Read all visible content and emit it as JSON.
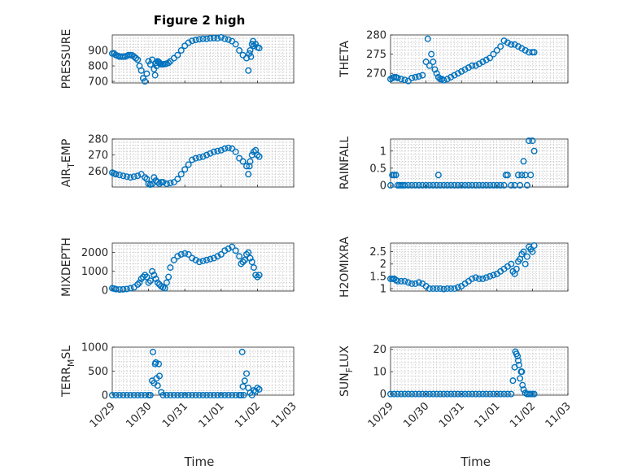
{
  "figure": {
    "title": "Figure 2 high",
    "marker_color": "#0072BD"
  },
  "chart_data": [
    {
      "type": "scatter",
      "ylabel": "PRESSURE",
      "ylabel_sub": "",
      "ylabel_after": "",
      "xlabel": "",
      "ylim": [
        690,
        1000
      ],
      "yticks": [
        700,
        800,
        900
      ],
      "yticklabels": [
        "700",
        "800",
        "900"
      ],
      "xlim": [
        0,
        5
      ],
      "xticks": [
        0,
        1,
        2,
        3,
        4,
        5
      ],
      "xticklabels": [],
      "xgrid_minor": 10,
      "x": [
        0,
        0.05,
        0.1,
        0.15,
        0.2,
        0.25,
        0.3,
        0.35,
        0.4,
        0.45,
        0.5,
        0.55,
        0.6,
        0.65,
        0.7,
        0.75,
        0.8,
        0.85,
        0.9,
        0.95,
        1.0,
        1.05,
        1.1,
        1.15,
        1.18,
        1.2,
        1.22,
        1.25,
        1.28,
        1.3,
        1.32,
        1.35,
        1.4,
        1.45,
        1.5,
        1.55,
        1.6,
        1.7,
        1.8,
        1.9,
        2.0,
        2.1,
        2.2,
        2.3,
        2.4,
        2.5,
        2.6,
        2.7,
        2.8,
        2.9,
        3.0,
        3.1,
        3.2,
        3.3,
        3.4,
        3.5,
        3.6,
        3.7,
        3.75,
        3.78,
        3.8,
        3.82,
        3.85,
        3.88,
        3.9,
        3.95,
        4.0,
        4.05
      ],
      "y": [
        880,
        880,
        870,
        865,
        860,
        860,
        860,
        860,
        865,
        870,
        870,
        868,
        860,
        850,
        840,
        800,
        770,
        720,
        700,
        750,
        830,
        810,
        840,
        780,
        740,
        820,
        800,
        830,
        825,
        820,
        812,
        810,
        810,
        812,
        815,
        820,
        830,
        850,
        870,
        900,
        930,
        950,
        962,
        968,
        972,
        975,
        975,
        978,
        980,
        978,
        985,
        975,
        970,
        960,
        940,
        900,
        870,
        850,
        770,
        880,
        900,
        860,
        940,
        960,
        930,
        940,
        920,
        915
      ]
    },
    {
      "type": "scatter",
      "ylabel": "THETA",
      "ylabel_sub": "",
      "ylabel_after": "",
      "xlabel": "",
      "ylim": [
        267.5,
        280
      ],
      "yticks": [
        270,
        275,
        280
      ],
      "yticklabels": [
        "270",
        "275",
        "280"
      ],
      "xlim": [
        0,
        5
      ],
      "xticks": [
        0,
        1,
        2,
        3,
        4,
        5
      ],
      "xticklabels": [],
      "xgrid_minor": 10,
      "x": [
        0,
        0.05,
        0.1,
        0.15,
        0.2,
        0.3,
        0.4,
        0.5,
        0.6,
        0.7,
        0.8,
        0.9,
        1.0,
        1.05,
        1.1,
        1.15,
        1.2,
        1.25,
        1.3,
        1.35,
        1.4,
        1.45,
        1.5,
        1.6,
        1.7,
        1.8,
        1.9,
        2.0,
        2.1,
        2.2,
        2.3,
        2.4,
        2.5,
        2.6,
        2.7,
        2.8,
        2.9,
        3.0,
        3.1,
        3.2,
        3.3,
        3.4,
        3.5,
        3.6,
        3.7,
        3.8,
        3.9,
        4.0,
        4.05
      ],
      "y": [
        268.5,
        268.8,
        269,
        269,
        268.8,
        268.5,
        268.3,
        268,
        268.8,
        269,
        269.2,
        269.5,
        273,
        279,
        272,
        275,
        273,
        271,
        270,
        269,
        268.5,
        268.5,
        268.2,
        268.5,
        269,
        269.5,
        270,
        270.5,
        271,
        271.5,
        272,
        272,
        272.5,
        273,
        273.5,
        274,
        275,
        276,
        277,
        278.5,
        278,
        277.5,
        277.5,
        277,
        276.5,
        276,
        275.5,
        275.5,
        275.5
      ]
    },
    {
      "type": "scatter",
      "ylabel": "AIR",
      "ylabel_sub": "T",
      "ylabel_after": "EMP",
      "xlabel": "",
      "ylim": [
        250,
        280
      ],
      "yticks": [
        260,
        270,
        280
      ],
      "yticklabels": [
        "260",
        "270",
        "280"
      ],
      "xlim": [
        0,
        5
      ],
      "xticks": [
        0,
        1,
        2,
        3,
        4,
        5
      ],
      "xticklabels": [],
      "xgrid_minor": 10,
      "x": [
        0,
        0.05,
        0.1,
        0.2,
        0.3,
        0.4,
        0.5,
        0.6,
        0.7,
        0.8,
        0.9,
        0.95,
        1.0,
        1.05,
        1.1,
        1.15,
        1.2,
        1.25,
        1.3,
        1.35,
        1.4,
        1.5,
        1.6,
        1.7,
        1.8,
        1.9,
        2.0,
        2.1,
        2.2,
        2.3,
        2.4,
        2.5,
        2.6,
        2.7,
        2.8,
        2.9,
        3.0,
        3.1,
        3.2,
        3.3,
        3.4,
        3.5,
        3.6,
        3.7,
        3.75,
        3.78,
        3.8,
        3.85,
        3.9,
        3.95,
        4.0,
        4.05
      ],
      "y": [
        259,
        258.5,
        258,
        257.5,
        257,
        256.5,
        256,
        256.5,
        257,
        258,
        256,
        255,
        252,
        251.5,
        252,
        256,
        254,
        253,
        252,
        253,
        253,
        252,
        252.5,
        253,
        255,
        258,
        261,
        264,
        267,
        268,
        268.5,
        269,
        270,
        271,
        272,
        272.5,
        273,
        274,
        274.5,
        274,
        272,
        268,
        266,
        263,
        258,
        263,
        266,
        270,
        272,
        273,
        270,
        269
      ]
    },
    {
      "type": "scatter",
      "ylabel": "RAINFALL",
      "ylabel_sub": "",
      "ylabel_after": "",
      "xlabel": "",
      "ylim": [
        -0.05,
        1.35
      ],
      "yticks": [
        0,
        0.5,
        1
      ],
      "yticklabels": [
        "0",
        "0.5",
        "1"
      ],
      "xlim": [
        0,
        5
      ],
      "xticks": [
        0,
        1,
        2,
        3,
        4,
        5
      ],
      "xticklabels": [],
      "xgrid_minor": 10,
      "x": [
        0,
        0.05,
        0.1,
        0.15,
        0.2,
        0.25,
        0.3,
        0.35,
        0.4,
        0.5,
        0.6,
        0.7,
        0.8,
        0.9,
        1.0,
        1.1,
        1.2,
        1.3,
        1.35,
        1.4,
        1.5,
        1.6,
        1.7,
        1.8,
        1.9,
        2.0,
        2.1,
        2.2,
        2.3,
        2.4,
        2.5,
        2.6,
        2.7,
        2.8,
        2.9,
        3.0,
        3.1,
        3.2,
        3.25,
        3.3,
        3.4,
        3.5,
        3.6,
        3.65,
        3.7,
        3.75,
        3.8,
        3.85,
        3.9,
        3.95,
        4.0,
        4.05
      ],
      "y": [
        0,
        0.3,
        0.3,
        0.3,
        0,
        0,
        0,
        0,
        0,
        0,
        0,
        0,
        0,
        0,
        0,
        0,
        0,
        0,
        0.3,
        0,
        0,
        0,
        0,
        0,
        0,
        0,
        0,
        0,
        0,
        0,
        0,
        0,
        0,
        0,
        0,
        0,
        0,
        0,
        0.3,
        0.3,
        0,
        0,
        0.3,
        0,
        0.3,
        0.7,
        0.3,
        0,
        1.3,
        0.3,
        1.3,
        1.0
      ]
    },
    {
      "type": "scatter",
      "ylabel": "MIXDEPTH",
      "ylabel_sub": "",
      "ylabel_after": "",
      "xlabel": "",
      "ylim": [
        -50,
        2500
      ],
      "yticks": [
        0,
        1000,
        2000
      ],
      "yticklabels": [
        "0",
        "1000",
        "2000"
      ],
      "xlim": [
        0,
        5
      ],
      "xticks": [
        0,
        1,
        2,
        3,
        4,
        5
      ],
      "xticklabels": [],
      "xgrid_minor": 10,
      "x": [
        0,
        0.05,
        0.1,
        0.2,
        0.3,
        0.4,
        0.5,
        0.6,
        0.7,
        0.75,
        0.8,
        0.85,
        0.9,
        0.95,
        1.0,
        1.05,
        1.1,
        1.15,
        1.2,
        1.25,
        1.3,
        1.35,
        1.4,
        1.45,
        1.5,
        1.55,
        1.6,
        1.7,
        1.8,
        1.9,
        2.0,
        2.1,
        2.2,
        2.3,
        2.4,
        2.5,
        2.6,
        2.7,
        2.8,
        2.9,
        3.0,
        3.1,
        3.2,
        3.3,
        3.4,
        3.5,
        3.55,
        3.6,
        3.65,
        3.7,
        3.75,
        3.8,
        3.85,
        3.9,
        3.95,
        4.0,
        4.05
      ],
      "y": [
        100,
        80,
        50,
        30,
        40,
        60,
        100,
        150,
        300,
        400,
        600,
        700,
        800,
        700,
        400,
        500,
        1000,
        800,
        600,
        400,
        300,
        200,
        150,
        100,
        400,
        700,
        1200,
        1600,
        1800,
        1900,
        1950,
        1900,
        1700,
        1600,
        1500,
        1550,
        1600,
        1650,
        1700,
        1800,
        1900,
        2100,
        2200,
        2300,
        2100,
        1800,
        1400,
        1500,
        1600,
        1900,
        2000,
        1700,
        1500,
        1200,
        800,
        700,
        800
      ]
    },
    {
      "type": "scatter",
      "ylabel": "H2OMIXRA",
      "ylabel_sub": "",
      "ylabel_after": "",
      "xlabel": "",
      "ylim": [
        0.9,
        2.85
      ],
      "yticks": [
        1,
        1.5,
        2,
        2.5
      ],
      "yticklabels": [
        "1",
        "1.5",
        "2",
        "2.5"
      ],
      "xlim": [
        0,
        5
      ],
      "xticks": [
        0,
        1,
        2,
        3,
        4,
        5
      ],
      "xticklabels": [],
      "xgrid_minor": 10,
      "x": [
        0,
        0.05,
        0.1,
        0.15,
        0.2,
        0.3,
        0.4,
        0.5,
        0.6,
        0.7,
        0.8,
        0.9,
        1.0,
        1.1,
        1.2,
        1.3,
        1.4,
        1.5,
        1.6,
        1.7,
        1.8,
        1.9,
        2.0,
        2.1,
        2.2,
        2.3,
        2.4,
        2.5,
        2.6,
        2.7,
        2.8,
        2.9,
        3.0,
        3.1,
        3.2,
        3.3,
        3.4,
        3.45,
        3.5,
        3.55,
        3.6,
        3.65,
        3.7,
        3.75,
        3.8,
        3.85,
        3.9,
        3.95,
        4.0,
        4.05
      ],
      "y": [
        1.4,
        1.4,
        1.4,
        1.35,
        1.3,
        1.3,
        1.3,
        1.25,
        1.2,
        1.2,
        1.25,
        1.2,
        1.1,
        1.0,
        1.0,
        1.0,
        1.0,
        0.98,
        1.0,
        1.0,
        1.0,
        1.05,
        1.1,
        1.2,
        1.3,
        1.4,
        1.45,
        1.4,
        1.4,
        1.45,
        1.5,
        1.55,
        1.6,
        1.7,
        1.8,
        1.9,
        2.0,
        1.7,
        1.6,
        1.8,
        2.1,
        2.2,
        2.4,
        2.5,
        2.0,
        2.3,
        2.7,
        2.6,
        2.5,
        2.75
      ]
    },
    {
      "type": "scatter",
      "ylabel": "TERR",
      "ylabel_sub": "M",
      "ylabel_after": "SL",
      "xlabel": "Time",
      "ylim": [
        0,
        1000
      ],
      "yticks": [
        0,
        500,
        1000
      ],
      "yticklabels": [
        "0",
        "500",
        "1000"
      ],
      "xlim": [
        0,
        5
      ],
      "xticks": [
        0,
        1,
        2,
        3,
        4,
        5
      ],
      "xticklabels": [
        "10/29",
        "10/30",
        "10/31",
        "11/01",
        "11/02",
        "11/03"
      ],
      "xgrid_minor": 10,
      "x": [
        0,
        0.1,
        0.2,
        0.3,
        0.4,
        0.5,
        0.6,
        0.7,
        0.8,
        0.9,
        1.0,
        1.05,
        1.1,
        1.12,
        1.15,
        1.18,
        1.2,
        1.22,
        1.25,
        1.28,
        1.3,
        1.35,
        1.4,
        1.5,
        1.6,
        1.7,
        1.8,
        1.9,
        2.0,
        2.1,
        2.2,
        2.3,
        2.4,
        2.5,
        2.6,
        2.7,
        2.8,
        2.9,
        3.0,
        3.1,
        3.2,
        3.3,
        3.4,
        3.5,
        3.55,
        3.58,
        3.6,
        3.62,
        3.65,
        3.7,
        3.75,
        3.8,
        3.85,
        3.9,
        3.95,
        4.0,
        4.05
      ],
      "y": [
        0,
        0,
        0,
        0,
        0,
        0,
        0,
        0,
        0,
        0,
        0,
        0,
        300,
        900,
        250,
        650,
        680,
        350,
        200,
        650,
        400,
        60,
        0,
        0,
        0,
        0,
        0,
        0,
        0,
        0,
        0,
        0,
        0,
        0,
        0,
        0,
        0,
        0,
        0,
        0,
        0,
        0,
        0,
        0,
        0,
        900,
        180,
        0,
        300,
        450,
        150,
        50,
        0,
        100,
        80,
        150,
        120
      ]
    },
    {
      "type": "scatter",
      "ylabel": "SUN",
      "ylabel_sub": "F",
      "ylabel_after": "LUX",
      "xlabel": "Time",
      "ylim": [
        -0.5,
        21
      ],
      "yticks": [
        0,
        10,
        20
      ],
      "yticklabels": [
        "0",
        "10",
        "20"
      ],
      "xlim": [
        0,
        5
      ],
      "xticks": [
        0,
        1,
        2,
        3,
        4,
        5
      ],
      "xticklabels": [
        "10/29",
        "10/30",
        "10/31",
        "11/01",
        "11/02",
        "11/03"
      ],
      "xgrid_minor": 10,
      "x": [
        0,
        0.1,
        0.2,
        0.3,
        0.4,
        0.5,
        0.6,
        0.7,
        0.8,
        0.9,
        1.0,
        1.1,
        1.2,
        1.3,
        1.4,
        1.5,
        1.6,
        1.7,
        1.8,
        1.9,
        2.0,
        2.1,
        2.2,
        2.3,
        2.4,
        2.5,
        2.6,
        2.7,
        2.8,
        2.9,
        3.0,
        3.1,
        3.2,
        3.3,
        3.4,
        3.45,
        3.5,
        3.52,
        3.55,
        3.58,
        3.6,
        3.62,
        3.65,
        3.68,
        3.7,
        3.72,
        3.75,
        3.8,
        3.85,
        3.9,
        3.95,
        4.0,
        4.05
      ],
      "y": [
        0,
        0,
        0,
        0,
        0,
        0,
        0,
        0,
        0,
        0,
        0,
        0,
        0,
        0,
        0,
        0,
        0,
        0,
        0,
        0,
        0,
        0,
        0,
        0,
        0,
        0,
        0,
        0,
        0,
        0,
        0,
        0,
        0,
        0,
        0,
        6,
        12,
        19,
        18,
        17,
        15,
        13,
        7,
        10,
        10,
        4,
        2,
        0.5,
        0,
        0,
        0,
        0,
        0
      ]
    }
  ]
}
